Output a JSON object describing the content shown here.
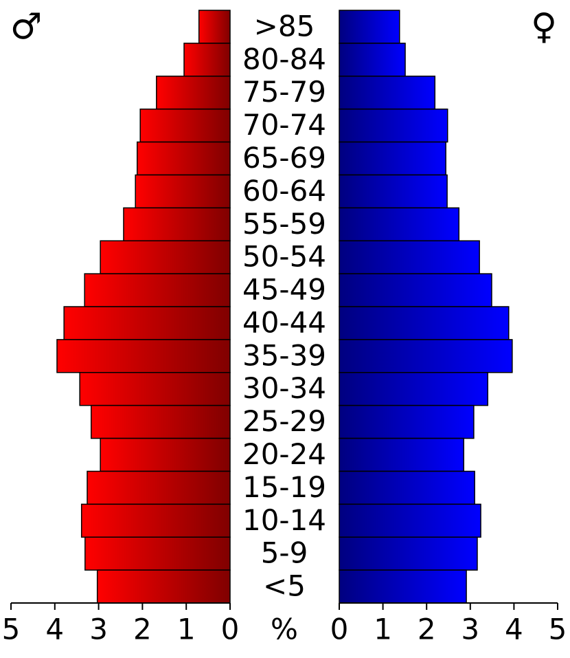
{
  "chart_data": {
    "type": "population_pyramid",
    "categories": [
      ">85",
      "80-84",
      "75-79",
      "70-74",
      "65-69",
      "60-64",
      "55-59",
      "50-54",
      "45-49",
      "40-44",
      "35-39",
      "30-34",
      "25-29",
      "20-24",
      "15-19",
      "10-14",
      "5-9",
      "<5"
    ],
    "series": [
      {
        "name": "♂",
        "color": "#ff0000",
        "side": "left",
        "values": [
          0.71,
          1.05,
          1.68,
          2.05,
          2.12,
          2.16,
          2.43,
          2.96,
          3.32,
          3.79,
          3.95,
          3.43,
          3.17,
          2.96,
          3.26,
          3.39,
          3.31,
          3.03
        ]
      },
      {
        "name": "♀",
        "color": "#0000ff",
        "side": "right",
        "values": [
          1.38,
          1.51,
          2.19,
          2.48,
          2.44,
          2.47,
          2.74,
          3.21,
          3.49,
          3.88,
          3.96,
          3.4,
          3.08,
          2.85,
          3.1,
          3.24,
          3.16,
          2.91
        ]
      }
    ],
    "xlim": [
      0,
      5
    ],
    "xticks": [
      0,
      1,
      2,
      3,
      4,
      5
    ],
    "x_label": "%"
  }
}
